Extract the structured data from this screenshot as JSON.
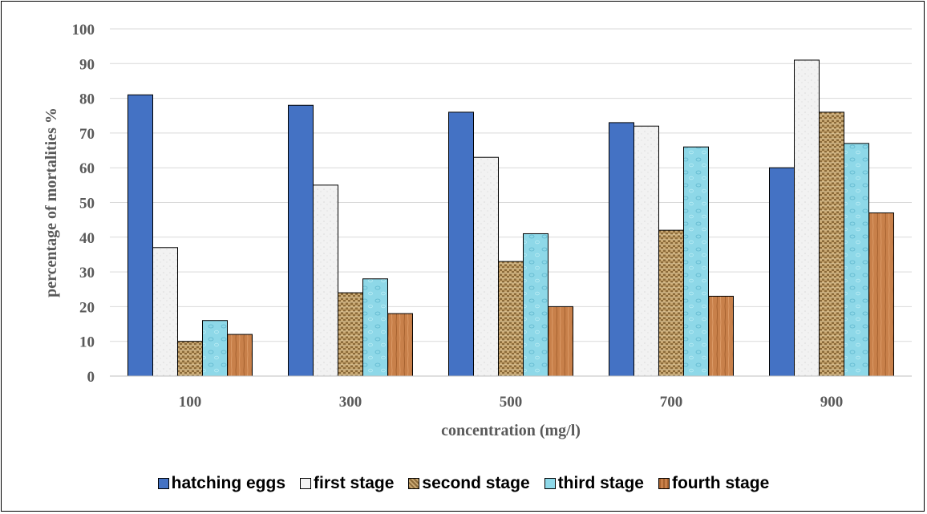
{
  "chart_data": {
    "type": "bar",
    "xlabel": "concentration (mg/l)",
    "ylabel": "percentage of mortalities %",
    "ylim": [
      0,
      100
    ],
    "yticks": [
      "0",
      "10",
      "20",
      "30",
      "40",
      "50",
      "60",
      "70",
      "80",
      "90",
      "100"
    ],
    "categories": [
      "100",
      "300",
      "500",
      "700",
      "900"
    ],
    "grid": true,
    "legend_position": "bottom",
    "series": [
      {
        "name": "hatching eggs",
        "values": [
          81,
          78,
          76,
          73,
          60
        ],
        "color": "#4472C4",
        "pattern": "solid"
      },
      {
        "name": "first stage",
        "values": [
          37,
          55,
          63,
          72,
          91
        ],
        "color": "#F0F0F0",
        "pattern": "paper"
      },
      {
        "name": "second stage",
        "values": [
          10,
          24,
          33,
          42,
          76
        ],
        "color": "#B8955C",
        "pattern": "burlap"
      },
      {
        "name": "third stage",
        "values": [
          16,
          28,
          41,
          66,
          67
        ],
        "color": "#8ED8E8",
        "pattern": "water"
      },
      {
        "name": "fourth stage",
        "values": [
          12,
          18,
          20,
          23,
          47
        ],
        "color": "#C8804A",
        "pattern": "wood"
      }
    ]
  }
}
